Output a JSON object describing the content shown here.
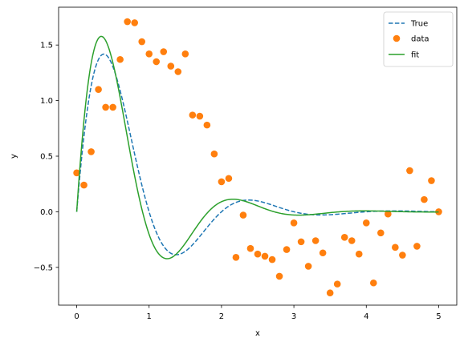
{
  "chart_data": {
    "type": "line",
    "xlabel": "x",
    "ylabel": "y",
    "xlim": [
      -0.25,
      5.25
    ],
    "ylim": [
      -0.84,
      1.84
    ],
    "xticks": [
      0,
      1,
      2,
      3,
      4,
      5
    ],
    "yticks": [
      -0.5,
      0.0,
      0.5,
      1.0,
      1.5
    ],
    "xtick_labels": [
      "0",
      "1",
      "2",
      "3",
      "4",
      "5"
    ],
    "ytick_labels": [
      "−0.5",
      "0.0",
      "0.5",
      "1.0",
      "1.5"
    ],
    "grid": false,
    "legend_position": "top-right",
    "series": [
      {
        "name": "True",
        "kind": "line",
        "style": "dashed",
        "color": "#1f77b4",
        "model": {
          "a": 2.5,
          "b": 1.3,
          "c": 0.5
        }
      },
      {
        "name": "data",
        "kind": "scatter",
        "color": "#ff7f0e",
        "x": [
          0.0,
          0.1,
          0.2,
          0.3,
          0.4,
          0.5,
          0.6,
          0.7,
          0.8,
          0.9,
          1.0,
          1.1,
          1.2,
          1.3,
          1.4,
          1.5,
          1.6,
          1.7,
          1.8,
          1.9,
          2.0,
          2.1,
          2.2,
          2.3,
          2.4,
          2.5,
          2.6,
          2.7,
          2.8,
          2.9,
          3.0,
          3.1,
          3.2,
          3.3,
          3.4,
          3.5,
          3.6,
          3.7,
          3.8,
          3.9,
          4.0,
          4.1,
          4.2,
          4.3,
          4.4,
          4.5,
          4.6,
          4.7,
          4.8,
          4.9,
          5.0
        ],
        "y": [
          0.35,
          0.24,
          0.54,
          1.1,
          0.94,
          0.94,
          1.37,
          1.71,
          1.7,
          1.53,
          1.42,
          1.35,
          1.44,
          1.31,
          1.26,
          1.42,
          0.87,
          0.86,
          0.78,
          0.52,
          0.27,
          0.3,
          -0.41,
          -0.03,
          -0.33,
          -0.38,
          -0.4,
          -0.43,
          -0.58,
          -0.34,
          -0.1,
          -0.27,
          -0.49,
          -0.26,
          -0.37,
          -0.73,
          -0.65,
          -0.23,
          -0.26,
          -0.38,
          -0.1,
          -0.64,
          -0.19,
          -0.02,
          -0.32,
          -0.39,
          0.37,
          -0.31,
          0.11,
          0.28,
          0.0
        ]
      },
      {
        "name": "fit",
        "kind": "line",
        "style": "solid",
        "color": "#2ca02c",
        "model": {
          "a": 2.8,
          "b": 1.45,
          "c": 0.55
        }
      }
    ]
  }
}
